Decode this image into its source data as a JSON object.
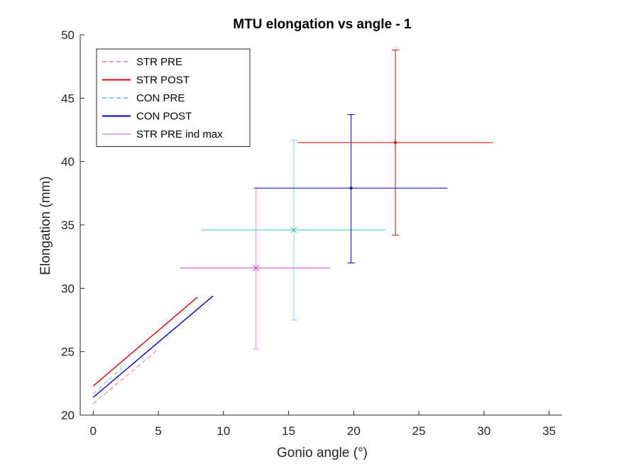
{
  "chart_data": {
    "type": "line",
    "title": "MTU elongation vs angle - 1",
    "xlabel": "Gonio angle (°)",
    "ylabel": "Elongation (mm)",
    "xlim": [
      -1,
      36
    ],
    "ylim": [
      20,
      50
    ],
    "xticks": [
      0,
      5,
      10,
      15,
      20,
      25,
      30,
      35
    ],
    "yticks": [
      20,
      25,
      30,
      35,
      40,
      45,
      50
    ],
    "grid": false,
    "legend_position": "top-left",
    "series": [
      {
        "name": "STR PRE",
        "color": "#f48fc4",
        "style": "dashed",
        "x": [
          0,
          5
        ],
        "y": [
          20.9,
          25.2
        ]
      },
      {
        "name": "STR POST",
        "color": "#dd0000",
        "style": "solid",
        "x": [
          0,
          8
        ],
        "y": [
          22.3,
          29.3
        ]
      },
      {
        "name": "CON PRE",
        "color": "#88d0f0",
        "style": "dashed",
        "x": [
          0,
          2.5
        ],
        "y": [
          21.7,
          24.0
        ]
      },
      {
        "name": "CON POST",
        "color": "#0000cc",
        "style": "solid",
        "x": [
          0,
          9.2
        ],
        "y": [
          21.4,
          29.4
        ]
      },
      {
        "name": "STR PRE ind max",
        "color": "#dd44dd",
        "style": "thin",
        "x": [],
        "y": []
      }
    ],
    "error_points": [
      {
        "series": "STR PRE ind max",
        "marker": "x",
        "color": "#cc44cc",
        "vcolor": "#ee88cc",
        "x": 12.5,
        "y": 31.6,
        "x_err": [
          6.7,
          18.2
        ],
        "y_err": [
          25.2,
          37.9
        ]
      },
      {
        "series": "CON PRE",
        "marker": "x",
        "color": "#33cccc",
        "vcolor": "#88ccee",
        "x": 15.4,
        "y": 34.6,
        "x_err": [
          8.3,
          22.5
        ],
        "y_err": [
          27.5,
          41.7
        ]
      },
      {
        "series": "CON POST",
        "marker": "dot",
        "color": "#0000cc",
        "vcolor": "#0000cc",
        "x": 19.8,
        "y": 37.9,
        "x_err": [
          12.4,
          27.2
        ],
        "y_err": [
          32.0,
          43.7
        ]
      },
      {
        "series": "STR POST",
        "marker": "dot",
        "color": "#dd0000",
        "vcolor": "#dd0000",
        "x": 23.2,
        "y": 41.5,
        "x_err": [
          15.7,
          30.7
        ],
        "y_err": [
          34.2,
          48.8
        ]
      }
    ]
  }
}
